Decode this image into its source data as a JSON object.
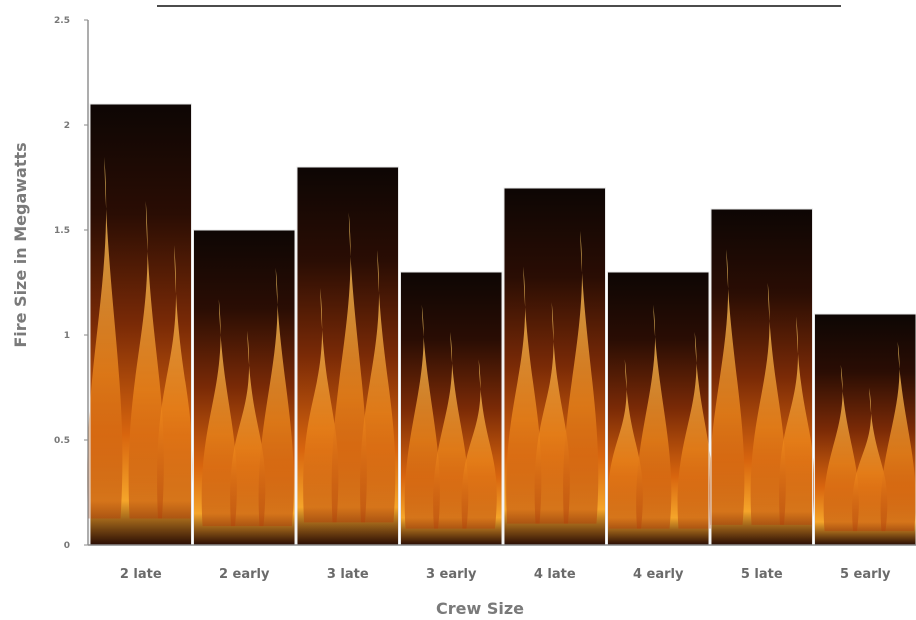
{
  "chart_data": {
    "type": "bar",
    "title": "",
    "xlabel": "Crew Size",
    "ylabel": "Fire Size in Megawatts",
    "categories": [
      "2 late",
      "2 early",
      "3 late",
      "3 early",
      "4 late",
      "4 early",
      "5 late",
      "5 early"
    ],
    "values": [
      2.1,
      1.5,
      1.8,
      1.3,
      1.7,
      1.3,
      1.6,
      1.1
    ],
    "ylim": [
      0,
      2.5
    ],
    "yticks": [
      "0",
      "0.5",
      "1",
      "1.5",
      "2",
      "2.5"
    ],
    "grid": false,
    "bar_fill": "flame image"
  }
}
